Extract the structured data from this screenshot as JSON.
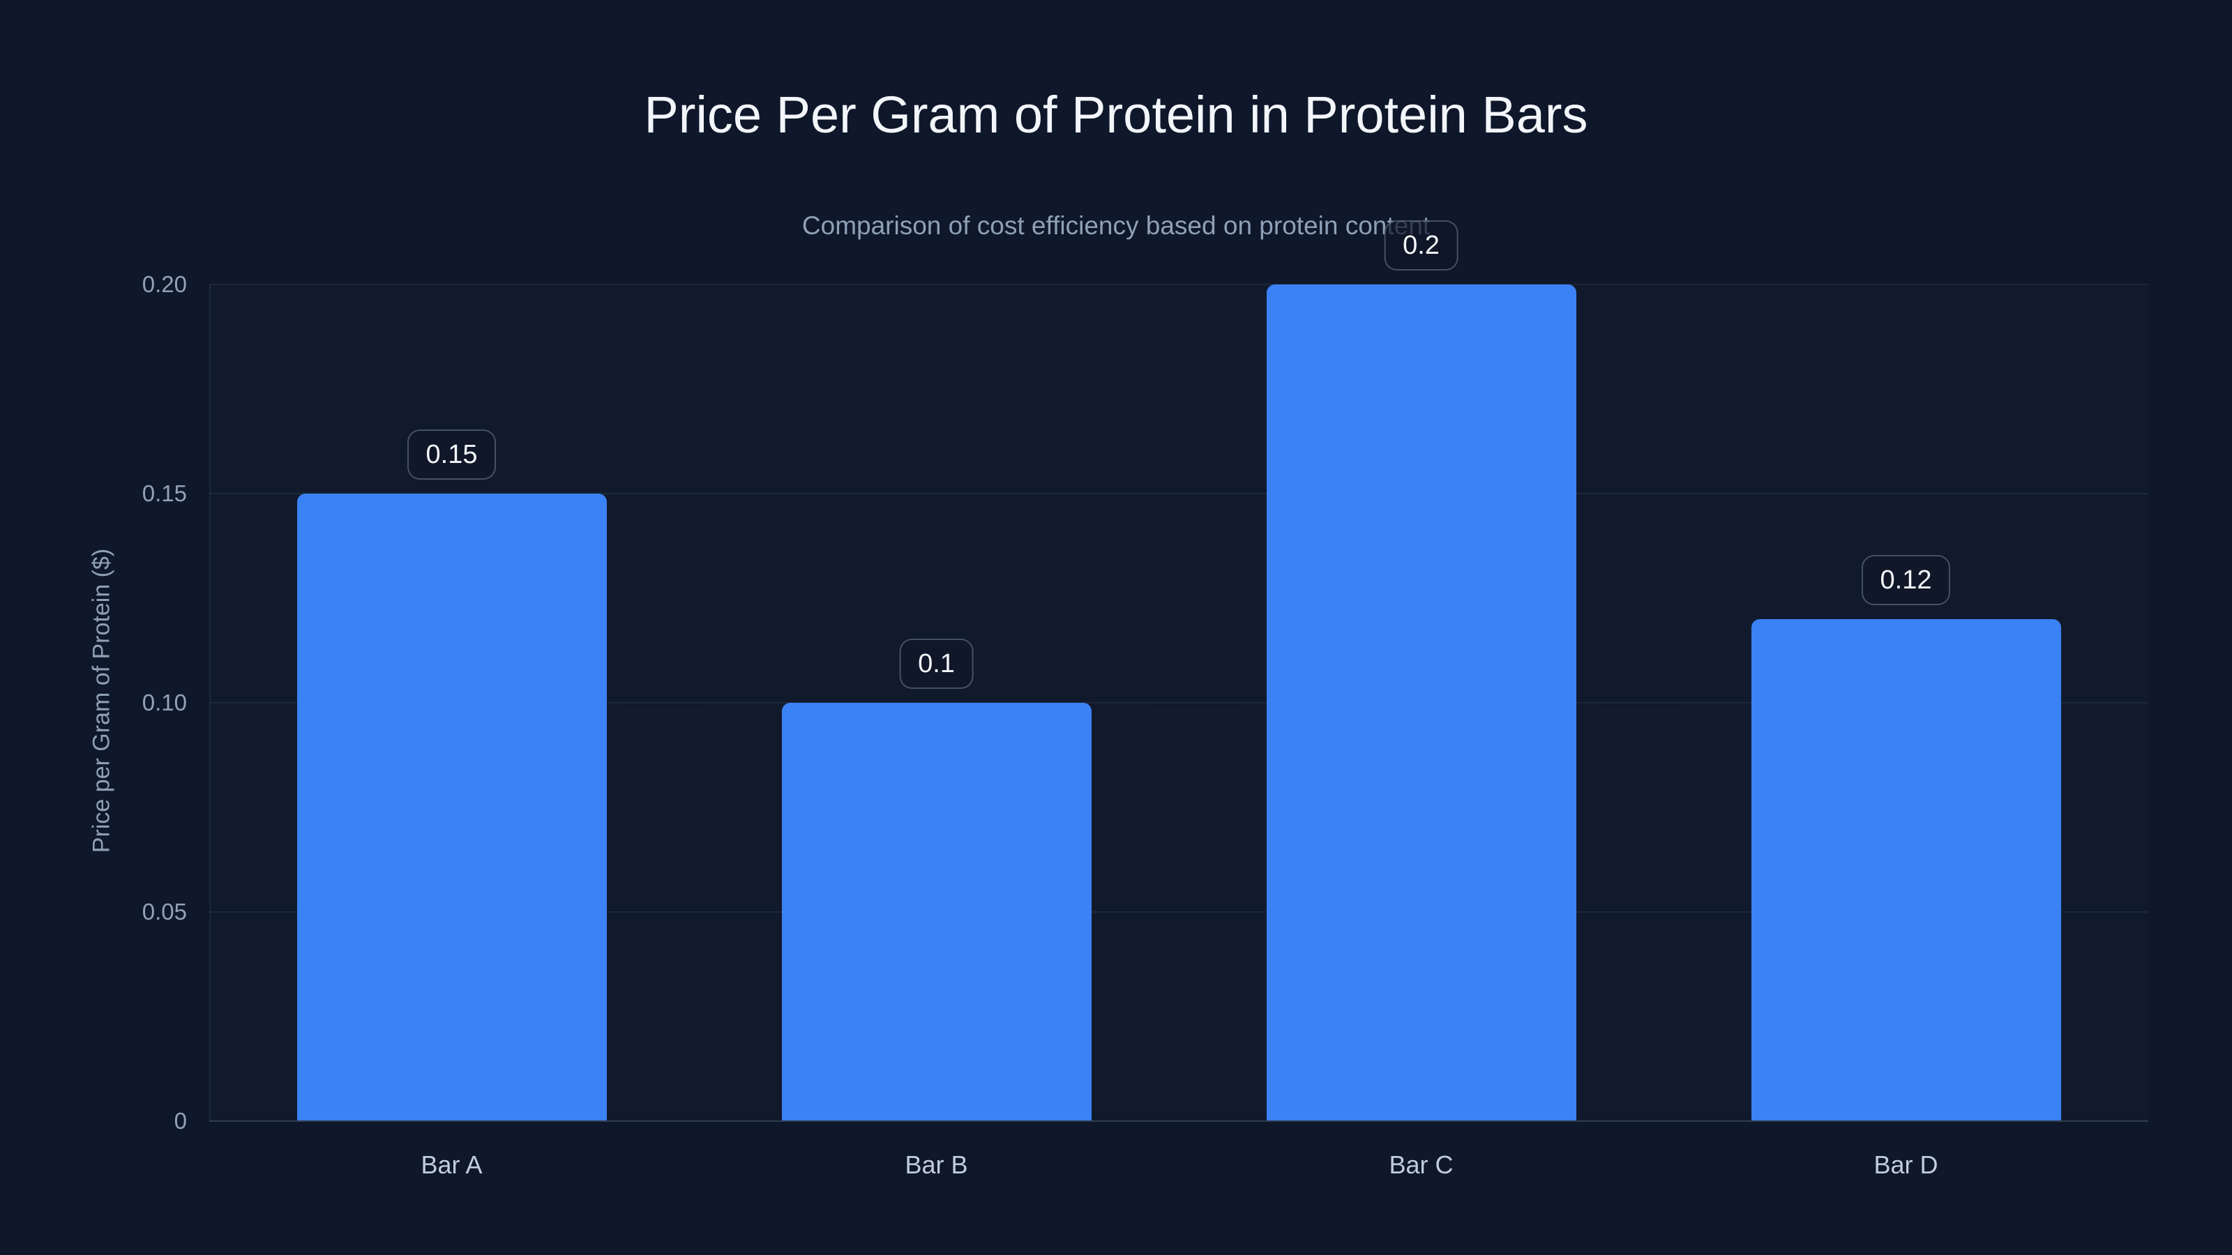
{
  "colors": {
    "background": "#0f172a",
    "bar": "#3b82f6",
    "title_text": "#f2f6fa",
    "muted_text": "#8fa0b6",
    "tick_text": "#93a2b8"
  },
  "chart_data": {
    "type": "bar",
    "title": "Price Per Gram of Protein in Protein Bars",
    "subtitle": "Comparison of cost efficiency based on protein content",
    "xlabel": "",
    "ylabel": "Price per Gram of Protein ($)",
    "categories": [
      "Bar A",
      "Bar B",
      "Bar C",
      "Bar D"
    ],
    "values": [
      0.15,
      0.1,
      0.2,
      0.12
    ],
    "value_labels": [
      "0.15",
      "0.1",
      "0.2",
      "0.12"
    ],
    "yticks": [
      {
        "value": 0,
        "label": "0"
      },
      {
        "value": 0.05,
        "label": "0.05"
      },
      {
        "value": 0.1,
        "label": "0.10"
      },
      {
        "value": 0.15,
        "label": "0.15"
      },
      {
        "value": 0.2,
        "label": "0.20"
      }
    ],
    "ylim": [
      0,
      0.2
    ],
    "grid": true,
    "legend": false,
    "bar_color": "#3b82f6"
  }
}
